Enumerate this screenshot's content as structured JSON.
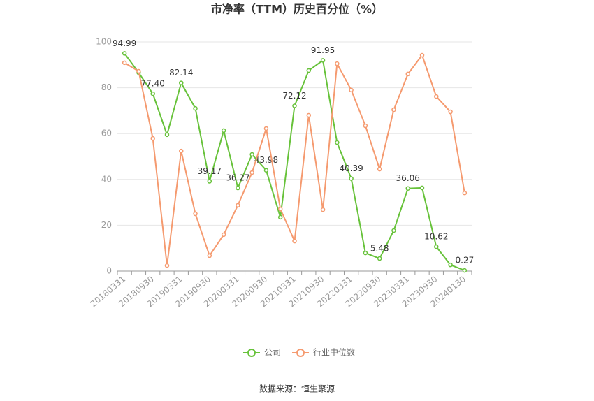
{
  "chart_data": {
    "type": "line",
    "title": "市净率（TTM）历史百分位（%）",
    "categories": [
      "20180331",
      null,
      "20180930",
      null,
      "20190331",
      null,
      "20190930",
      null,
      "20200331",
      null,
      "20200930",
      null,
      "20210331",
      null,
      "20210930",
      null,
      "20220331",
      null,
      "20220930",
      null,
      "20230331",
      null,
      "20230930",
      null,
      "20240130"
    ],
    "series": [
      {
        "name": "公司",
        "color": "#67c23a",
        "values": [
          94.99,
          86.6,
          77.4,
          59.5,
          82.14,
          71.0,
          39.17,
          61.3,
          36.27,
          50.9,
          43.98,
          23.5,
          72.12,
          87.5,
          91.95,
          56.1,
          40.39,
          7.9,
          5.48,
          17.7,
          36.06,
          36.3,
          10.62,
          2.7,
          0.27
        ],
        "value_labels": [
          "94.99",
          null,
          "77.40",
          null,
          "82.14",
          null,
          "39.17",
          null,
          "36.27",
          null,
          "43.98",
          null,
          "72.12",
          null,
          "91.95",
          null,
          "40.39",
          null,
          "5.48",
          null,
          "36.06",
          null,
          "10.62",
          null,
          "0.27"
        ]
      },
      {
        "name": "行业中位数",
        "color": "#f59a6f",
        "values": [
          90.9,
          87.2,
          57.9,
          2.4,
          52.4,
          25.0,
          6.7,
          15.9,
          28.7,
          43.0,
          62.2,
          27.1,
          13.1,
          68.0,
          26.8,
          90.5,
          79.0,
          63.4,
          44.5,
          70.4,
          86.0,
          94.2,
          76.2,
          69.5,
          34.1
        ]
      }
    ],
    "ylim": [
      0,
      100
    ],
    "yticks": [
      0,
      20,
      40,
      60,
      80,
      100
    ],
    "grid": true,
    "source": "数据来源：恒生聚源"
  }
}
